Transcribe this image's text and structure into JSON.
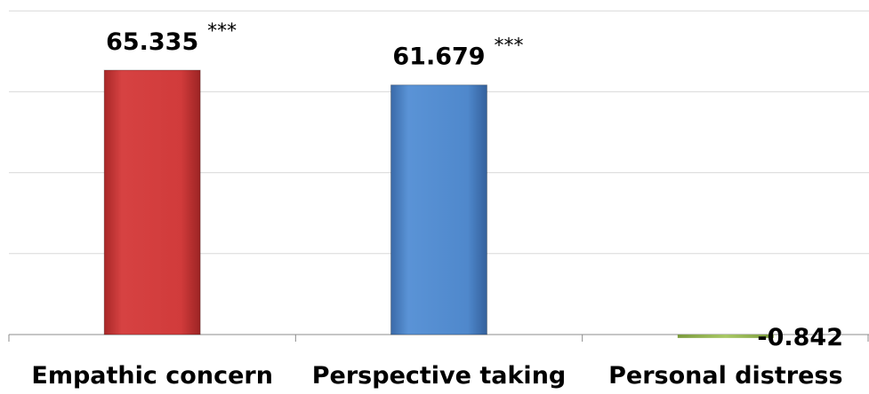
{
  "chart_data": {
    "type": "bar",
    "categories": [
      "Empathic concern",
      "Perspective taking",
      "Personal distress"
    ],
    "values": [
      65.335,
      61.679,
      -0.842
    ],
    "value_labels": [
      "65.335",
      "61.679",
      "-0.842"
    ],
    "significance": [
      "***",
      "***",
      ""
    ],
    "colors": [
      "#d13b3b",
      "#4f88cc",
      "#9bbb59"
    ],
    "ylim": [
      0,
      80
    ],
    "grid": true,
    "legend": "none",
    "title": "",
    "xlabel": "",
    "ylabel": ""
  }
}
